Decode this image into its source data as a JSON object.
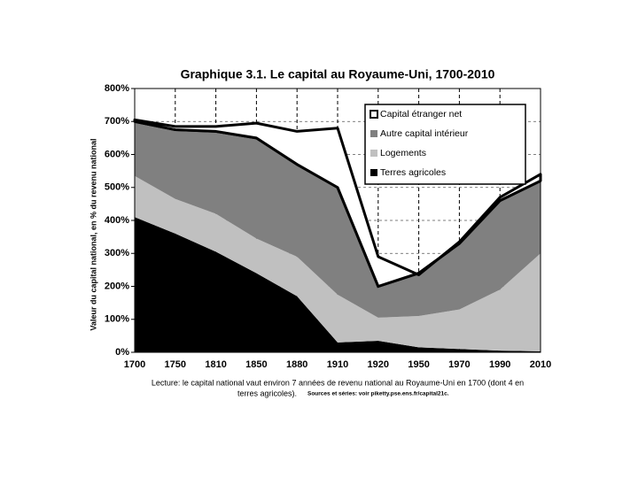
{
  "chart_data": {
    "type": "stacked_area",
    "title": "Graphique 3.1. Le capital au Royaume-Uni, 1700-2010",
    "y_label": "Valeur du capital national, en % du revenu national",
    "categories": [
      "1700",
      "1750",
      "1810",
      "1850",
      "1880",
      "1910",
      "1920",
      "1950",
      "1970",
      "1990",
      "2010"
    ],
    "series": [
      {
        "name": "Terres agricoles",
        "color": "#000000",
        "values": [
          410,
          360,
          305,
          240,
          170,
          30,
          35,
          15,
          10,
          5,
          3
        ]
      },
      {
        "name": "Logements",
        "color": "#c0c0c0",
        "values": [
          125,
          105,
          115,
          105,
          120,
          145,
          70,
          95,
          120,
          185,
          297
        ]
      },
      {
        "name": "Autre capital intérieur",
        "color": "#808080",
        "values": [
          165,
          210,
          250,
          305,
          280,
          325,
          95,
          130,
          200,
          270,
          220
        ]
      },
      {
        "name": "Capital étranger net",
        "color": "#ffffff",
        "values": [
          5,
          10,
          15,
          45,
          100,
          180,
          90,
          -5,
          5,
          10,
          20
        ]
      }
    ],
    "ylim": [
      0,
      800
    ],
    "yticks": [
      {
        "value": 0,
        "label": "0%"
      },
      {
        "value": 100,
        "label": "100%"
      },
      {
        "value": 200,
        "label": "200%"
      },
      {
        "value": 300,
        "label": "300%"
      },
      {
        "value": 400,
        "label": "400%"
      },
      {
        "value": 500,
        "label": "500%"
      },
      {
        "value": 600,
        "label": "600%"
      },
      {
        "value": 700,
        "label": "700%"
      },
      {
        "value": 800,
        "label": "800%"
      }
    ],
    "grid": true,
    "legend": "top-right",
    "note_lines": [
      "Lecture: le capital national vaut environ 7 années de revenu national au Royaume-Uni en 1700 (dont 4 en",
      "terres agricoles)."
    ],
    "source": "Sources et séries: voir piketty.pse.ens.fr/capital21c."
  }
}
